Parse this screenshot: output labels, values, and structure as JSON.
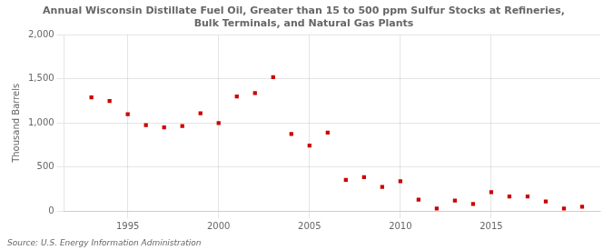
{
  "chart_data": {
    "type": "scatter",
    "title": "Annual Wisconsin Distillate Fuel Oil, Greater than 15 to 500 ppm Sulfur Stocks at Refineries,\nBulk Terminals, and Natural Gas Plants",
    "ylabel": "Thousand Barrels",
    "source": "Source: U.S. Energy Information Administration",
    "x": [
      1993,
      1994,
      1995,
      1996,
      1997,
      1998,
      1999,
      2000,
      2001,
      2002,
      2003,
      2004,
      2005,
      2006,
      2007,
      2008,
      2009,
      2010,
      2011,
      2012,
      2013,
      2014,
      2015,
      2016,
      2017,
      2018,
      2019,
      2020
    ],
    "values": [
      1290,
      1250,
      1100,
      975,
      950,
      965,
      1110,
      1000,
      1300,
      1340,
      1520,
      875,
      745,
      890,
      355,
      385,
      275,
      340,
      130,
      30,
      120,
      80,
      215,
      165,
      165,
      110,
      30,
      50
    ],
    "color": "#cc0000",
    "marker": "square",
    "xlim": [
      1991.5,
      2021
    ],
    "xticks": [
      1995,
      2000,
      2005,
      2010,
      2015
    ],
    "ylim": [
      0,
      2000
    ],
    "yticks": [
      0,
      500,
      {
        "value": 1000,
        "label": "1,000"
      },
      {
        "value": 1500,
        "label": "1,500"
      },
      {
        "value": 2000,
        "label": "2,000"
      }
    ],
    "grid": true
  }
}
